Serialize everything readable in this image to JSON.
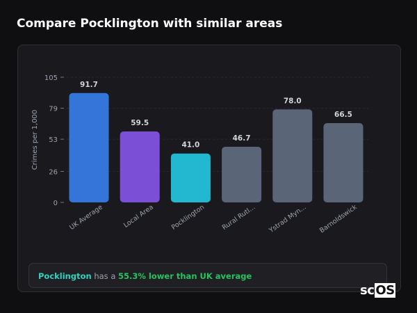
{
  "title": "Compare Pocklington with similar areas",
  "chart_data": {
    "type": "bar",
    "ylabel": "Crimes per 1,000",
    "ylim": [
      0,
      105
    ],
    "yticks": [
      0,
      26,
      53,
      79,
      105
    ],
    "categories": [
      "UK Average",
      "Local Area",
      "Pocklington",
      "Rural Rutl...",
      "Ystrad Myn...",
      "Barnoldswick"
    ],
    "values": [
      91.7,
      59.5,
      41.0,
      46.7,
      78.0,
      66.5
    ],
    "value_labels": [
      "91.7",
      "59.5",
      "41.0",
      "46.7",
      "78.0",
      "66.5"
    ],
    "colors": [
      "#3375d9",
      "#7b4fd6",
      "#22b8cf",
      "#5a6577",
      "#5a6577",
      "#5a6577"
    ],
    "grid": true
  },
  "summary": {
    "place": "Pocklington",
    "mid": " has a ",
    "highlight": "55.3% lower than UK average"
  },
  "logo": {
    "a": "sc",
    "b": "OS"
  }
}
